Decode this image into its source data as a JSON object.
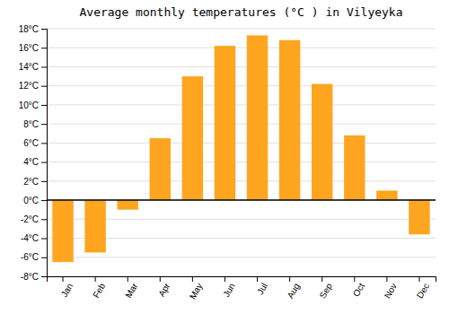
{
  "chart_data": {
    "type": "bar",
    "title": "Average monthly temperatures (°C ) in Vilyeyka",
    "categories": [
      "Jan",
      "Feb",
      "Mar",
      "Apr",
      "May",
      "Jun",
      "Jul",
      "Aug",
      "Sep",
      "Oct",
      "Nov",
      "Dec"
    ],
    "values": [
      -6.5,
      -5.5,
      -1.0,
      6.5,
      13.0,
      16.2,
      17.3,
      16.8,
      12.2,
      6.8,
      1.0,
      -3.6
    ],
    "color": "#FFA520",
    "ylim": [
      -8,
      18
    ],
    "yticks": [
      {
        "value": -8,
        "label": "-8°C"
      },
      {
        "value": -6,
        "label": "-6°C"
      },
      {
        "value": -4,
        "label": "-4°C"
      },
      {
        "value": -2,
        "label": "-2°C"
      },
      {
        "value": 0,
        "label": "0°C"
      },
      {
        "value": 2,
        "label": "2°C"
      },
      {
        "value": 4,
        "label": "4°C"
      },
      {
        "value": 6,
        "label": "6°C"
      },
      {
        "value": 8,
        "label": "8°C"
      },
      {
        "value": 10,
        "label": "10°C"
      },
      {
        "value": 12,
        "label": "12°C"
      },
      {
        "value": 14,
        "label": "14°C"
      },
      {
        "value": 16,
        "label": "16°C"
      },
      {
        "value": 18,
        "label": "18°C"
      }
    ],
    "grid": true
  }
}
